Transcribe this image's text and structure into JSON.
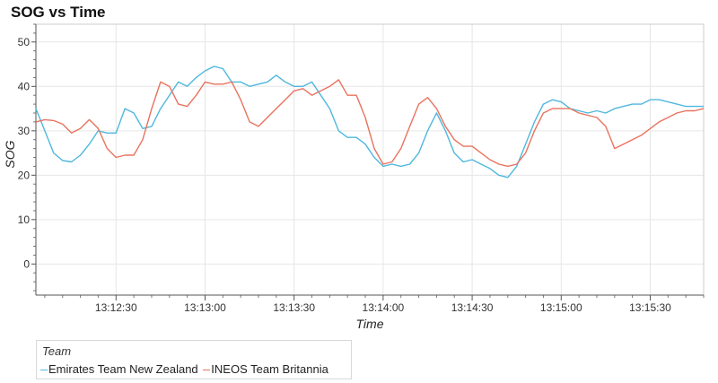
{
  "chart_data": {
    "type": "line",
    "title": "SOG vs Time",
    "xlabel": "Time",
    "ylabel": "SOG",
    "xlim": [
      "13:12:03",
      "13:15:48"
    ],
    "ylim": [
      -7,
      54
    ],
    "x_ticks": [
      "13:12:30",
      "13:13:00",
      "13:13:30",
      "13:14:00",
      "13:14:30",
      "13:15:00",
      "13:15:30"
    ],
    "y_ticks": [
      0,
      10,
      20,
      30,
      40,
      50
    ],
    "grid": true,
    "legend": {
      "title": "Team",
      "placement": "bottom-left"
    },
    "series": [
      {
        "name": "Emirates Team New Zealand",
        "color": "#4fb7dd",
        "points": [
          [
            "13:12:03",
            35
          ],
          [
            "13:12:06",
            30
          ],
          [
            "13:12:09",
            25
          ],
          [
            "13:12:12",
            23.3
          ],
          [
            "13:12:15",
            23
          ],
          [
            "13:12:18",
            24.5
          ],
          [
            "13:12:21",
            27
          ],
          [
            "13:12:24",
            30
          ],
          [
            "13:12:27",
            29.5
          ],
          [
            "13:12:30",
            29.5
          ],
          [
            "13:12:33",
            35
          ],
          [
            "13:12:36",
            34
          ],
          [
            "13:12:39",
            30.5
          ],
          [
            "13:12:42",
            31
          ],
          [
            "13:12:45",
            35
          ],
          [
            "13:12:48",
            38
          ],
          [
            "13:12:51",
            41
          ],
          [
            "13:12:54",
            40
          ],
          [
            "13:12:57",
            42
          ],
          [
            "13:13:00",
            43.5
          ],
          [
            "13:13:03",
            44.5
          ],
          [
            "13:13:06",
            44
          ],
          [
            "13:13:09",
            41
          ],
          [
            "13:13:12",
            41
          ],
          [
            "13:13:15",
            40
          ],
          [
            "13:13:18",
            40.5
          ],
          [
            "13:13:21",
            41
          ],
          [
            "13:13:24",
            42.5
          ],
          [
            "13:13:27",
            41
          ],
          [
            "13:13:30",
            40
          ],
          [
            "13:13:33",
            40
          ],
          [
            "13:13:36",
            41
          ],
          [
            "13:13:39",
            38
          ],
          [
            "13:13:42",
            35
          ],
          [
            "13:13:45",
            30
          ],
          [
            "13:13:48",
            28.5
          ],
          [
            "13:13:51",
            28.5
          ],
          [
            "13:13:54",
            27
          ],
          [
            "13:13:57",
            24
          ],
          [
            "13:14:00",
            22
          ],
          [
            "13:14:03",
            22.5
          ],
          [
            "13:14:06",
            22
          ],
          [
            "13:14:09",
            22.5
          ],
          [
            "13:14:12",
            25
          ],
          [
            "13:14:15",
            30
          ],
          [
            "13:14:18",
            34
          ],
          [
            "13:14:21",
            30
          ],
          [
            "13:14:24",
            25
          ],
          [
            "13:14:27",
            23
          ],
          [
            "13:14:30",
            23.5
          ],
          [
            "13:14:33",
            22.5
          ],
          [
            "13:14:36",
            21.5
          ],
          [
            "13:14:39",
            20
          ],
          [
            "13:14:42",
            19.5
          ],
          [
            "13:14:45",
            22
          ],
          [
            "13:14:48",
            27
          ],
          [
            "13:14:51",
            32
          ],
          [
            "13:14:54",
            36
          ],
          [
            "13:14:57",
            37
          ],
          [
            "13:15:00",
            36.5
          ],
          [
            "13:15:03",
            35
          ],
          [
            "13:15:06",
            34.5
          ],
          [
            "13:15:09",
            34
          ],
          [
            "13:15:12",
            34.5
          ],
          [
            "13:15:15",
            34
          ],
          [
            "13:15:18",
            35
          ],
          [
            "13:15:21",
            35.5
          ],
          [
            "13:15:24",
            36
          ],
          [
            "13:15:27",
            36
          ],
          [
            "13:15:30",
            37
          ],
          [
            "13:15:33",
            37
          ],
          [
            "13:15:36",
            36.5
          ],
          [
            "13:15:39",
            36
          ],
          [
            "13:15:42",
            35.5
          ],
          [
            "13:15:45",
            35.5
          ],
          [
            "13:15:48",
            35.5
          ]
        ]
      },
      {
        "name": "INEOS Team Britannia",
        "color": "#e8735e",
        "points": [
          [
            "13:12:03",
            32
          ],
          [
            "13:12:06",
            32.5
          ],
          [
            "13:12:09",
            32.3
          ],
          [
            "13:12:12",
            31.5
          ],
          [
            "13:12:15",
            29.5
          ],
          [
            "13:12:18",
            30.5
          ],
          [
            "13:12:21",
            32.5
          ],
          [
            "13:12:24",
            30.5
          ],
          [
            "13:12:27",
            26
          ],
          [
            "13:12:30",
            24
          ],
          [
            "13:12:33",
            24.5
          ],
          [
            "13:12:36",
            24.5
          ],
          [
            "13:12:39",
            28
          ],
          [
            "13:12:42",
            35
          ],
          [
            "13:12:45",
            41
          ],
          [
            "13:12:48",
            40
          ],
          [
            "13:12:51",
            36
          ],
          [
            "13:12:54",
            35.5
          ],
          [
            "13:12:57",
            38
          ],
          [
            "13:13:00",
            41
          ],
          [
            "13:13:03",
            40.5
          ],
          [
            "13:13:06",
            40.5
          ],
          [
            "13:13:09",
            41
          ],
          [
            "13:13:12",
            37
          ],
          [
            "13:13:15",
            32
          ],
          [
            "13:13:18",
            31
          ],
          [
            "13:13:21",
            33
          ],
          [
            "13:13:24",
            35
          ],
          [
            "13:13:27",
            37
          ],
          [
            "13:13:30",
            39
          ],
          [
            "13:13:33",
            39.5
          ],
          [
            "13:13:36",
            38
          ],
          [
            "13:13:39",
            39
          ],
          [
            "13:13:42",
            40
          ],
          [
            "13:13:45",
            41.5
          ],
          [
            "13:13:48",
            38
          ],
          [
            "13:13:51",
            38
          ],
          [
            "13:13:54",
            33
          ],
          [
            "13:13:57",
            26
          ],
          [
            "13:14:00",
            22.5
          ],
          [
            "13:14:03",
            23
          ],
          [
            "13:14:06",
            26
          ],
          [
            "13:14:09",
            31
          ],
          [
            "13:14:12",
            36
          ],
          [
            "13:14:15",
            37.5
          ],
          [
            "13:14:18",
            35
          ],
          [
            "13:14:21",
            31
          ],
          [
            "13:14:24",
            28
          ],
          [
            "13:14:27",
            26.5
          ],
          [
            "13:14:30",
            26.5
          ],
          [
            "13:14:33",
            25
          ],
          [
            "13:14:36",
            23.5
          ],
          [
            "13:14:39",
            22.5
          ],
          [
            "13:14:42",
            22
          ],
          [
            "13:14:45",
            22.5
          ],
          [
            "13:14:48",
            25
          ],
          [
            "13:14:51",
            30
          ],
          [
            "13:14:54",
            34
          ],
          [
            "13:14:57",
            35
          ],
          [
            "13:15:00",
            35
          ],
          [
            "13:15:03",
            35
          ],
          [
            "13:15:06",
            34
          ],
          [
            "13:15:09",
            33.5
          ],
          [
            "13:15:12",
            33
          ],
          [
            "13:15:15",
            31
          ],
          [
            "13:15:18",
            26
          ],
          [
            "13:15:21",
            27
          ],
          [
            "13:15:24",
            28
          ],
          [
            "13:15:27",
            29
          ],
          [
            "13:15:30",
            30.5
          ],
          [
            "13:15:33",
            32
          ],
          [
            "13:15:36",
            33
          ],
          [
            "13:15:39",
            34
          ],
          [
            "13:15:42",
            34.5
          ],
          [
            "13:15:45",
            34.5
          ],
          [
            "13:15:48",
            35
          ]
        ]
      }
    ]
  }
}
